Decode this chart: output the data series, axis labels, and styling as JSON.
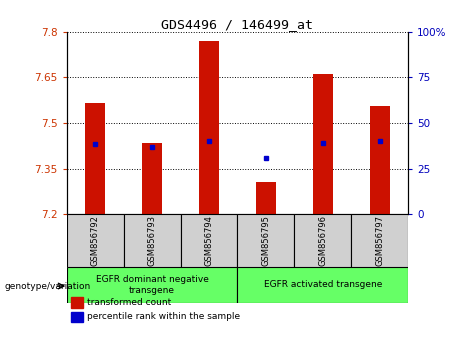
{
  "title": "GDS4496 / 146499_at",
  "samples": [
    "GSM856792",
    "GSM856793",
    "GSM856794",
    "GSM856795",
    "GSM856796",
    "GSM856797"
  ],
  "bar_values": [
    7.565,
    7.435,
    7.77,
    7.305,
    7.66,
    7.555
  ],
  "percentile_values": [
    7.43,
    7.42,
    7.44,
    7.385,
    7.435,
    7.44
  ],
  "ylim_left": [
    7.2,
    7.8
  ],
  "ylim_right": [
    0,
    100
  ],
  "yticks_left": [
    7.2,
    7.35,
    7.5,
    7.65,
    7.8
  ],
  "yticks_right": [
    0,
    25,
    50,
    75,
    100
  ],
  "ytick_labels_left": [
    "7.2",
    "7.35",
    "7.5",
    "7.65",
    "7.8"
  ],
  "ytick_labels_right": [
    "0",
    "25",
    "50",
    "75",
    "100%"
  ],
  "bar_color": "#cc1100",
  "percentile_color": "#0000cc",
  "bar_bottom": 7.2,
  "legend_items": [
    {
      "label": "transformed count",
      "color": "#cc1100"
    },
    {
      "label": "percentile rank within the sample",
      "color": "#0000cc"
    }
  ],
  "genotype_label": "genotype/variation",
  "left_color": "#cc3300",
  "right_color": "#0000bb",
  "bar_width": 0.35,
  "group1_label": "EGFR dominant negative\ntransgene",
  "group2_label": "EGFR activated transgene",
  "group_color": "#66ff66",
  "sample_box_color": "#d0d0d0"
}
